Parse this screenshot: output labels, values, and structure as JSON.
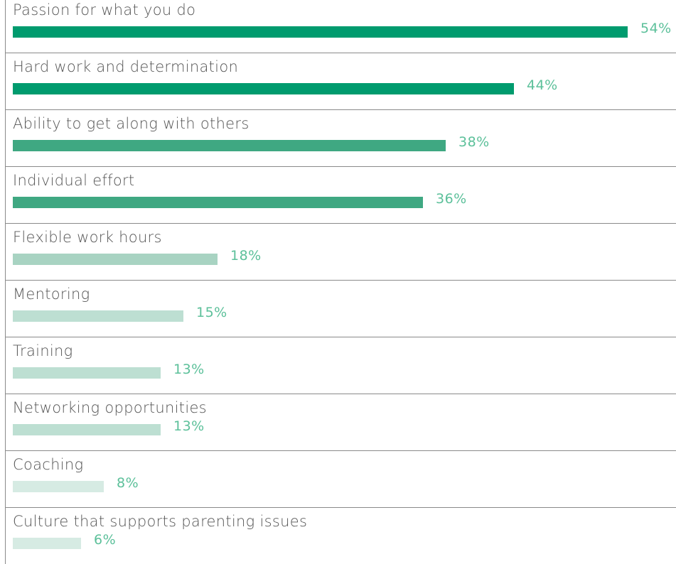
{
  "chart_data": {
    "type": "bar",
    "orientation": "horizontal",
    "categories": [
      "Passion for what you do",
      "Hard work and determination",
      "Ability to get along with others",
      "Individual effort",
      "Flexible work hours",
      "Mentoring",
      "Training",
      "Networking opportunities",
      "Coaching",
      "Culture that supports parenting issues"
    ],
    "values": [
      54,
      44,
      38,
      36,
      18,
      15,
      13,
      13,
      8,
      6
    ],
    "value_labels": [
      "54%",
      "44%",
      "38%",
      "36%",
      "18%",
      "15%",
      "13%",
      "13%",
      "8%",
      "6%"
    ],
    "title": "",
    "xlabel": "",
    "ylabel": "",
    "xlim": [
      0,
      54
    ],
    "grid": false,
    "legend": "none",
    "bar_colors": [
      "#009b6e",
      "#009b6e",
      "#3fa882",
      "#3fa882",
      "#a8d3c2",
      "#bddfd2",
      "#bddfd2",
      "#bddfd2",
      "#d6ebe3",
      "#d6ebe3"
    ],
    "value_color": "#5cc09a"
  }
}
